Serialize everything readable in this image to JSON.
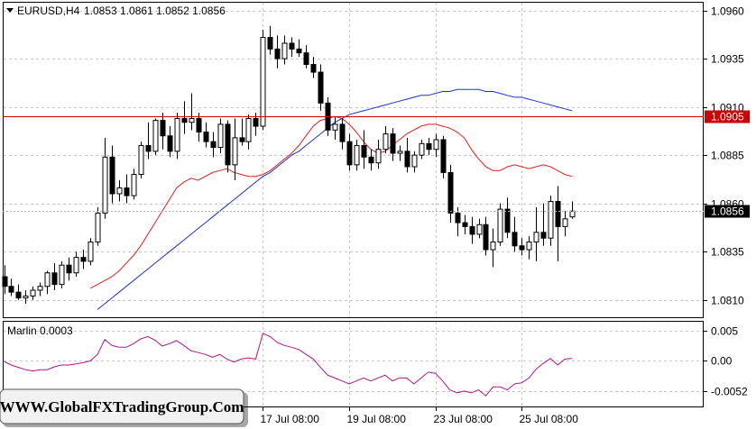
{
  "header": {
    "symbol_title": "EURUSD,H4",
    "ohlc": "1.0853 1.0861 1.0852 1.0856"
  },
  "price_axis": {
    "ticks": [
      "1.0960",
      "1.0935",
      "1.0910",
      "1.0885",
      "1.0860",
      "1.0835",
      "1.0810"
    ],
    "level_label": "1.0905",
    "current_label": "1.0856"
  },
  "indicator": {
    "title": "Marlin 0.0003",
    "ticks": [
      "0.005",
      "0.00",
      "-0.0052"
    ]
  },
  "time_axis": {
    "labels": [
      "17 Jul 08:00",
      "19 Jul 08:00",
      "23 Jul 08:00",
      "25 Jul 08:00"
    ]
  },
  "watermark": "WWW.GlobalFXTradingGroup.Com",
  "colors": {
    "bull_body": "#ffffff",
    "bear_body": "#000000",
    "red_ma": "#e02020",
    "blue_ma": "#1a33cc",
    "hline": "#cc0000",
    "marlin_line": "#b0158a",
    "grid": "#c8c8c8"
  },
  "chart_data": [
    {
      "type": "candlestick",
      "title": "EURUSD,H4",
      "ylim": [
        1.0801,
        1.0964
      ],
      "yticks": [
        1.096,
        1.0935,
        1.091,
        1.0885,
        1.086,
        1.0835,
        1.081
      ],
      "level_line": 1.0905,
      "current_price": 1.0856,
      "x_tick_labels": [
        {
          "label": "17 Jul 08:00",
          "index": 36
        },
        {
          "label": "19 Jul 08:00",
          "index": 48
        },
        {
          "label": "23 Jul 08:00",
          "index": 60
        },
        {
          "label": "25 Jul 08:00",
          "index": 72
        }
      ],
      "candles": [
        [
          1.0822,
          1.0828,
          1.0813,
          1.0817
        ],
        [
          1.0817,
          1.0821,
          1.0812,
          1.0814
        ],
        [
          1.0814,
          1.0818,
          1.081,
          1.0811
        ],
        [
          1.0811,
          1.0815,
          1.0808,
          1.0812
        ],
        [
          1.0812,
          1.0817,
          1.081,
          1.0815
        ],
        [
          1.0815,
          1.0819,
          1.0812,
          1.0817
        ],
        [
          1.0817,
          1.0825,
          1.0813,
          1.0824
        ],
        [
          1.0824,
          1.0829,
          1.0815,
          1.0818
        ],
        [
          1.0818,
          1.083,
          1.0816,
          1.0828
        ],
        [
          1.0828,
          1.0832,
          1.082,
          1.0824
        ],
        [
          1.0824,
          1.0835,
          1.0822,
          1.0832
        ],
        [
          1.0832,
          1.0836,
          1.0826,
          1.083
        ],
        [
          1.083,
          1.0842,
          1.0828,
          1.084
        ],
        [
          1.084,
          1.0858,
          1.0838,
          1.0855
        ],
        [
          1.0855,
          1.0894,
          1.0852,
          1.0884
        ],
        [
          1.0884,
          1.089,
          1.086,
          1.0865
        ],
        [
          1.0865,
          1.0872,
          1.0861,
          1.0868
        ],
        [
          1.0868,
          1.0875,
          1.086,
          1.0864
        ],
        [
          1.0864,
          1.0878,
          1.0862,
          1.0875
        ],
        [
          1.0875,
          1.0892,
          1.0873,
          1.089
        ],
        [
          1.089,
          1.0902,
          1.0883,
          1.0887
        ],
        [
          1.0887,
          1.0904,
          1.0885,
          1.0903
        ],
        [
          1.0903,
          1.0907,
          1.0888,
          1.0895
        ],
        [
          1.0895,
          1.09,
          1.0884,
          1.0887
        ],
        [
          1.0887,
          1.0907,
          1.0883,
          1.0904
        ],
        [
          1.0904,
          1.0913,
          1.0896,
          1.0902
        ],
        [
          1.0902,
          1.0917,
          1.0898,
          1.0904
        ],
        [
          1.0904,
          1.0907,
          1.0892,
          1.0897
        ],
        [
          1.0897,
          1.0902,
          1.0889,
          1.0892
        ],
        [
          1.0892,
          1.0897,
          1.0884,
          1.0889
        ],
        [
          1.0889,
          1.0904,
          1.0886,
          1.0901
        ],
        [
          1.0901,
          1.0903,
          1.0876,
          1.088
        ],
        [
          1.088,
          1.0904,
          1.0872,
          1.0894
        ],
        [
          1.0894,
          1.0904,
          1.089,
          1.0892
        ],
        [
          1.0892,
          1.0906,
          1.0888,
          1.0904
        ],
        [
          1.0904,
          1.0907,
          1.0895,
          1.09
        ],
        [
          1.09,
          1.095,
          1.0898,
          1.0946
        ],
        [
          1.0946,
          1.0952,
          1.0937,
          1.094
        ],
        [
          1.094,
          1.0947,
          1.093,
          1.0935
        ],
        [
          1.0935,
          1.0947,
          1.0932,
          1.0943
        ],
        [
          1.0943,
          1.0946,
          1.0936,
          1.094
        ],
        [
          1.094,
          1.0945,
          1.0936,
          1.0938
        ],
        [
          1.0938,
          1.0942,
          1.093,
          1.0932
        ],
        [
          1.0932,
          1.0936,
          1.0925,
          1.0928
        ],
        [
          1.0928,
          1.0932,
          1.0908,
          1.0912
        ],
        [
          1.0912,
          1.0915,
          1.0895,
          1.0898
        ],
        [
          1.0898,
          1.0905,
          1.0893,
          1.0901
        ],
        [
          1.0901,
          1.0904,
          1.0888,
          1.0892
        ],
        [
          1.0892,
          1.0896,
          1.0877,
          1.088
        ],
        [
          1.088,
          1.0893,
          1.0877,
          1.089
        ],
        [
          1.089,
          1.0898,
          1.0878,
          1.0884
        ],
        [
          1.0884,
          1.0888,
          1.0877,
          1.0881
        ],
        [
          1.0881,
          1.0893,
          1.0878,
          1.0888
        ],
        [
          1.0888,
          1.09,
          1.0886,
          1.0896
        ],
        [
          1.0896,
          1.0899,
          1.0882,
          1.0886
        ],
        [
          1.0886,
          1.089,
          1.0882,
          1.0887
        ],
        [
          1.0887,
          1.0894,
          1.0876,
          1.0879
        ],
        [
          1.0879,
          1.0887,
          1.0876,
          1.0885
        ],
        [
          1.0885,
          1.0893,
          1.0883,
          1.0891
        ],
        [
          1.0891,
          1.0894,
          1.0885,
          1.0888
        ],
        [
          1.0888,
          1.0896,
          1.0884,
          1.0893
        ],
        [
          1.0893,
          1.0895,
          1.0873,
          1.0876
        ],
        [
          1.0876,
          1.088,
          1.085,
          1.0855
        ],
        [
          1.0855,
          1.0858,
          1.0843,
          1.085
        ],
        [
          1.085,
          1.0854,
          1.0844,
          1.0848
        ],
        [
          1.0848,
          1.0853,
          1.0839,
          1.0844
        ],
        [
          1.0844,
          1.0852,
          1.0842,
          1.0849
        ],
        [
          1.0849,
          1.0853,
          1.0833,
          1.0836
        ],
        [
          1.0836,
          1.0847,
          1.0827,
          1.084
        ],
        [
          1.084,
          1.086,
          1.0838,
          1.0857
        ],
        [
          1.0857,
          1.0863,
          1.0842,
          1.0845
        ],
        [
          1.0845,
          1.0853,
          1.0835,
          1.0838
        ],
        [
          1.0838,
          1.0842,
          1.0833,
          1.0836
        ],
        [
          1.0836,
          1.0843,
          1.0831,
          1.084
        ],
        [
          1.084,
          1.0858,
          1.083,
          1.0845
        ],
        [
          1.0845,
          1.086,
          1.0838,
          1.0842
        ],
        [
          1.0842,
          1.0864,
          1.0838,
          1.0861
        ],
        [
          1.0861,
          1.0869,
          1.083,
          1.0848
        ],
        [
          1.0848,
          1.0856,
          1.0843,
          1.0852
        ],
        [
          1.0853,
          1.0861,
          1.0852,
          1.0856
        ]
      ],
      "series": [
        {
          "values": [
            1.0816,
            1.0818,
            1.082,
            1.0822,
            1.0825,
            1.0829,
            1.0833,
            1.0838,
            1.0844,
            1.085,
            1.0856,
            1.0862,
            1.0868,
            1.0871,
            1.0873,
            1.0872,
            1.0874,
            1.0876,
            1.0877,
            1.0878,
            1.0876,
            1.0875,
            1.0874,
            1.0874,
            1.0875,
            1.0877,
            1.088,
            1.0883,
            1.0886,
            1.089,
            1.0895,
            1.09,
            1.0903,
            1.0904,
            1.0905,
            1.0904,
            1.0901,
            1.0897,
            1.0892,
            1.0888,
            1.0886,
            1.0887,
            1.089,
            1.0893,
            1.0896,
            1.0898,
            1.09,
            1.0901,
            1.0901,
            1.09,
            1.0899,
            1.0897,
            1.0894,
            1.0888,
            1.0883,
            1.0879,
            1.0877,
            1.0877,
            1.0879,
            1.088,
            1.0879,
            1.0878,
            1.0879,
            1.088,
            1.0879,
            1.0877,
            1.0875,
            1.0874
          ]
        },
        {
          "values": [
            1.0805,
            1.0808,
            1.0811,
            1.0814,
            1.0817,
            1.082,
            1.0823,
            1.0826,
            1.0829,
            1.0832,
            1.0835,
            1.0838,
            1.0841,
            1.0844,
            1.0847,
            1.085,
            1.0853,
            1.0856,
            1.0859,
            1.0862,
            1.0865,
            1.0868,
            1.0871,
            1.0874,
            1.0876,
            1.0879,
            1.0882,
            1.0885,
            1.0887,
            1.089,
            1.0893,
            1.0896,
            1.0899,
            1.0902,
            1.0904,
            1.0906,
            1.0907,
            1.0908,
            1.0909,
            1.091,
            1.0911,
            1.0912,
            1.0913,
            1.0914,
            1.0915,
            1.0916,
            1.0916,
            1.0917,
            1.0918,
            1.0918,
            1.0919,
            1.0919,
            1.0919,
            1.0919,
            1.0918,
            1.0918,
            1.0917,
            1.0916,
            1.0915,
            1.0915,
            1.0914,
            1.0913,
            1.0912,
            1.0911,
            1.091,
            1.0909,
            1.0908
          ]
        }
      ]
    },
    {
      "type": "line",
      "title": "Marlin 0.0003",
      "ylim": [
        -0.0078,
        0.0065
      ],
      "yticks": [
        0.005,
        0.0,
        -0.0052
      ],
      "series": [
        {
          "values": [
            -0.0002,
            -0.0008,
            -0.0012,
            -0.0016,
            -0.0018,
            -0.0016,
            -0.0016,
            -0.0011,
            -0.0008,
            -0.0008,
            -0.0006,
            -0.0004,
            -0.0001,
            0.001,
            0.0035,
            0.0025,
            0.0022,
            0.0022,
            0.0028,
            0.0036,
            0.004,
            0.0034,
            0.0024,
            0.0028,
            0.0033,
            0.0025,
            0.0016,
            0.0013,
            0.001,
            0.0005,
            0.001,
            0.0002,
            -0.0003,
            0.0002,
            0.0004,
            0.0002,
            0.0045,
            0.004,
            0.003,
            0.0025,
            0.0022,
            0.0018,
            0.001,
            0.0002,
            -0.0012,
            -0.0025,
            -0.003,
            -0.0035,
            -0.004,
            -0.0035,
            -0.003,
            -0.0035,
            -0.003,
            -0.0025,
            -0.0035,
            -0.003,
            -0.003,
            -0.004,
            -0.003,
            -0.002,
            -0.0022,
            -0.0035,
            -0.005,
            -0.0055,
            -0.0052,
            -0.0055,
            -0.005,
            -0.006,
            -0.0045,
            -0.0045,
            -0.005,
            -0.004,
            -0.0038,
            -0.003,
            -0.0015,
            -0.0005,
            0.0003,
            -0.0008,
            0.0002,
            0.0003
          ]
        }
      ]
    }
  ]
}
